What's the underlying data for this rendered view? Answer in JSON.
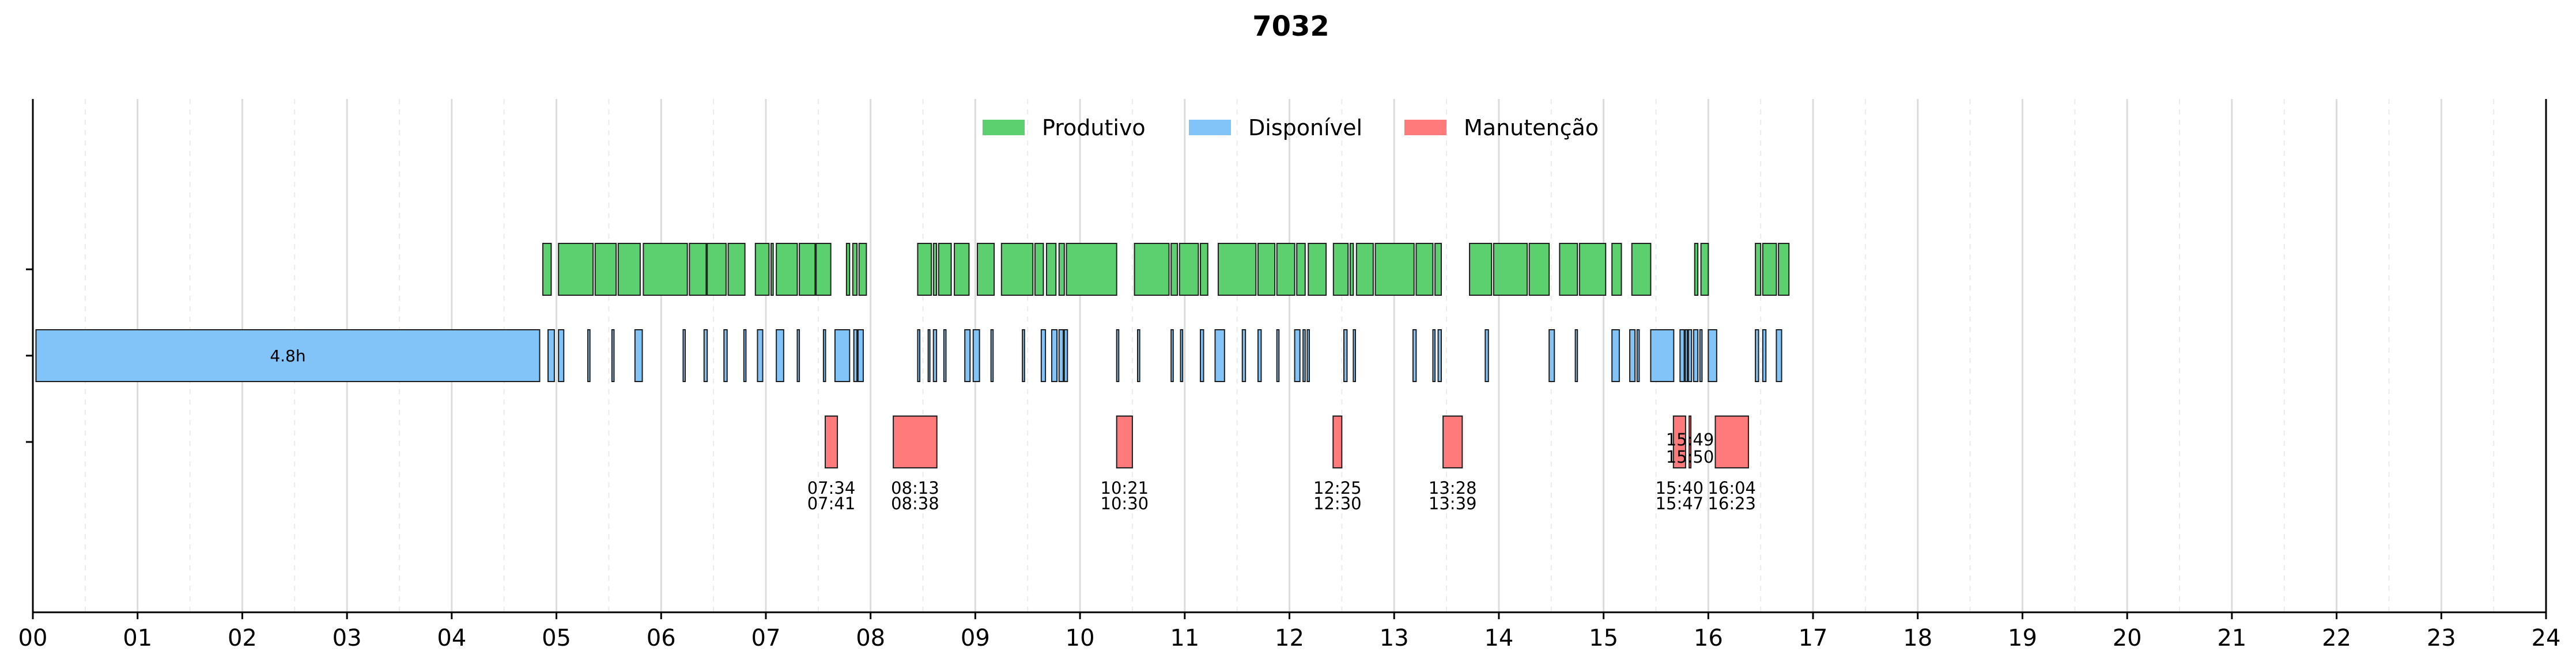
{
  "chart_data": {
    "type": "gantt",
    "title": "7032",
    "xlim": [
      0,
      24
    ],
    "x_ticks": [
      "00",
      "01",
      "02",
      "03",
      "04",
      "05",
      "06",
      "07",
      "08",
      "09",
      "10",
      "11",
      "12",
      "13",
      "14",
      "15",
      "16",
      "17",
      "18",
      "19",
      "20",
      "21",
      "22",
      "23",
      "24"
    ],
    "grid": "vertical, dashed at half-hours",
    "legend": {
      "placement": "top-center",
      "entries": [
        {
          "name": "Produtivo",
          "color": "#5ccf6e"
        },
        {
          "name": "Disponível",
          "color": "#82c4f8"
        },
        {
          "name": "Manutenção",
          "color": "#ff7a7a"
        }
      ]
    },
    "rows": [
      "Produtivo",
      "Disponível",
      "Manutenção"
    ],
    "series": [
      {
        "name": "Produtivo",
        "color": "#5ccf6e",
        "intervals": [
          [
            4.87,
            4.95
          ],
          [
            5.02,
            5.35
          ],
          [
            5.37,
            5.57
          ],
          [
            5.59,
            5.8
          ],
          [
            5.83,
            6.25
          ],
          [
            6.27,
            6.43
          ],
          [
            6.44,
            6.62
          ],
          [
            6.64,
            6.8
          ],
          [
            6.9,
            7.03
          ],
          [
            7.05,
            7.07
          ],
          [
            7.1,
            7.3
          ],
          [
            7.32,
            7.47
          ],
          [
            7.48,
            7.62
          ],
          [
            7.77,
            7.8
          ],
          [
            7.83,
            7.87
          ],
          [
            7.89,
            7.96
          ],
          [
            8.45,
            8.58
          ],
          [
            8.6,
            8.63
          ],
          [
            8.65,
            8.77
          ],
          [
            8.8,
            8.94
          ],
          [
            9.02,
            9.18
          ],
          [
            9.25,
            9.55
          ],
          [
            9.57,
            9.65
          ],
          [
            9.68,
            9.77
          ],
          [
            9.8,
            9.85
          ],
          [
            9.87,
            10.35
          ],
          [
            10.52,
            10.85
          ],
          [
            10.87,
            10.93
          ],
          [
            10.95,
            11.13
          ],
          [
            11.15,
            11.22
          ],
          [
            11.32,
            11.68
          ],
          [
            11.7,
            11.86
          ],
          [
            11.88,
            12.05
          ],
          [
            12.07,
            12.15
          ],
          [
            12.18,
            12.35
          ],
          [
            12.42,
            12.56
          ],
          [
            12.58,
            12.61
          ],
          [
            12.64,
            12.8
          ],
          [
            12.82,
            13.19
          ],
          [
            13.21,
            13.37
          ],
          [
            13.39,
            13.45
          ],
          [
            13.72,
            13.93
          ],
          [
            13.95,
            14.27
          ],
          [
            14.29,
            14.48
          ],
          [
            14.58,
            14.75
          ],
          [
            14.77,
            15.02
          ],
          [
            15.08,
            15.17
          ],
          [
            15.27,
            15.45
          ],
          [
            15.87,
            15.9
          ],
          [
            15.93,
            16.0
          ],
          [
            16.45,
            16.5
          ],
          [
            16.52,
            16.65
          ],
          [
            16.67,
            16.77
          ]
        ]
      },
      {
        "name": "Disponível",
        "color": "#82c4f8",
        "intervals": [
          [
            0.03,
            4.84
          ],
          [
            4.92,
            4.98
          ],
          [
            5.02,
            5.07
          ],
          [
            5.3,
            5.32
          ],
          [
            5.53,
            5.55
          ],
          [
            5.75,
            5.82
          ],
          [
            6.21,
            6.23
          ],
          [
            6.41,
            6.44
          ],
          [
            6.6,
            6.63
          ],
          [
            6.79,
            6.81
          ],
          [
            6.92,
            6.97
          ],
          [
            7.1,
            7.17
          ],
          [
            7.3,
            7.32
          ],
          [
            7.55,
            7.57
          ],
          [
            7.66,
            7.8
          ],
          [
            7.84,
            7.87
          ],
          [
            7.88,
            7.93
          ],
          [
            8.45,
            8.47
          ],
          [
            8.55,
            8.56
          ],
          [
            8.6,
            8.63
          ],
          [
            8.7,
            8.72
          ],
          [
            8.9,
            8.95
          ],
          [
            8.98,
            9.04
          ],
          [
            9.15,
            9.17
          ],
          [
            9.45,
            9.47
          ],
          [
            9.63,
            9.67
          ],
          [
            9.73,
            9.78
          ],
          [
            9.8,
            9.84
          ],
          [
            9.85,
            9.88
          ],
          [
            10.35,
            10.37
          ],
          [
            10.55,
            10.57
          ],
          [
            10.87,
            10.89
          ],
          [
            10.96,
            10.98
          ],
          [
            11.15,
            11.18
          ],
          [
            11.29,
            11.38
          ],
          [
            11.55,
            11.58
          ],
          [
            11.7,
            11.73
          ],
          [
            11.88,
            11.9
          ],
          [
            12.05,
            12.1
          ],
          [
            12.13,
            12.15
          ],
          [
            12.17,
            12.19
          ],
          [
            12.52,
            12.55
          ],
          [
            12.61,
            12.63
          ],
          [
            13.18,
            13.21
          ],
          [
            13.37,
            13.39
          ],
          [
            13.42,
            13.45
          ],
          [
            13.87,
            13.9
          ],
          [
            14.48,
            14.53
          ],
          [
            14.73,
            14.75
          ],
          [
            15.08,
            15.15
          ],
          [
            15.25,
            15.3
          ],
          [
            15.32,
            15.34
          ],
          [
            15.45,
            15.67
          ],
          [
            15.73,
            15.77
          ],
          [
            15.78,
            15.8
          ],
          [
            15.81,
            15.84
          ],
          [
            15.86,
            15.9
          ],
          [
            15.92,
            15.94
          ],
          [
            16.0,
            16.08
          ],
          [
            16.45,
            16.48
          ],
          [
            16.52,
            16.55
          ],
          [
            16.65,
            16.7
          ]
        ],
        "labels": [
          {
            "interval": 0,
            "text": "4.8h"
          }
        ]
      },
      {
        "name": "Manutenção",
        "color": "#ff7a7a",
        "intervals": [
          {
            "start": 7.567,
            "end": 7.683,
            "label": [
              "07:34",
              "07:41"
            ],
            "label_pos": "below"
          },
          {
            "start": 8.217,
            "end": 8.633,
            "label": [
              "08:13",
              "08:38"
            ],
            "label_pos": "below"
          },
          {
            "start": 10.35,
            "end": 10.5,
            "label": [
              "10:21",
              "10:30"
            ],
            "label_pos": "below"
          },
          {
            "start": 12.417,
            "end": 12.5,
            "label": [
              "12:25",
              "12:30"
            ],
            "label_pos": "below"
          },
          {
            "start": 13.467,
            "end": 13.65,
            "label": [
              "13:28",
              "13:39"
            ],
            "label_pos": "below"
          },
          {
            "start": 15.667,
            "end": 15.783,
            "label": [
              "15:40",
              "15:47"
            ],
            "label_pos": "below"
          },
          {
            "start": 15.817,
            "end": 15.833,
            "label": [
              "15:49",
              "15:50"
            ],
            "label_pos": "inside"
          },
          {
            "start": 16.067,
            "end": 16.383,
            "label": [
              "16:04",
              "16:23"
            ],
            "label_pos": "below"
          }
        ]
      }
    ]
  }
}
